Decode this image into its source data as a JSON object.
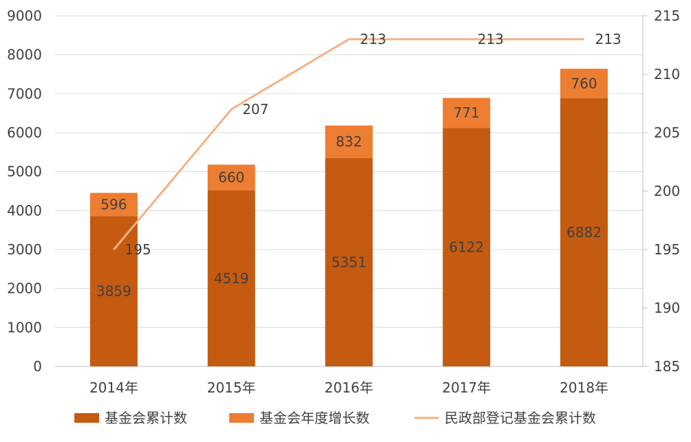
{
  "chart_data": {
    "type": "bar",
    "stacked": true,
    "categories": [
      "2014年",
      "2015年",
      "2016年",
      "2017年",
      "2018年"
    ],
    "series": [
      {
        "name": "基金会累计数",
        "kind": "bar",
        "axis": "left",
        "color": "#C55A11",
        "values": [
          3859,
          4519,
          5351,
          6122,
          6882
        ]
      },
      {
        "name": "基金会年度增长数",
        "kind": "bar",
        "axis": "left",
        "color": "#ED7D31",
        "values": [
          596,
          660,
          832,
          771,
          760
        ]
      },
      {
        "name": "民政部登记基金会累计数",
        "kind": "line",
        "axis": "right",
        "color": "#F4B183",
        "values": [
          195,
          207,
          213,
          213,
          213
        ]
      }
    ],
    "y_left": {
      "ylim": [
        0,
        9000
      ],
      "ticks": [
        0,
        1000,
        2000,
        3000,
        4000,
        5000,
        6000,
        7000,
        8000,
        9000
      ]
    },
    "y_right": {
      "ylim": [
        185,
        215
      ],
      "ticks": [
        185,
        190,
        195,
        200,
        205,
        210,
        215
      ]
    },
    "grid": true,
    "legend_position": "bottom"
  }
}
